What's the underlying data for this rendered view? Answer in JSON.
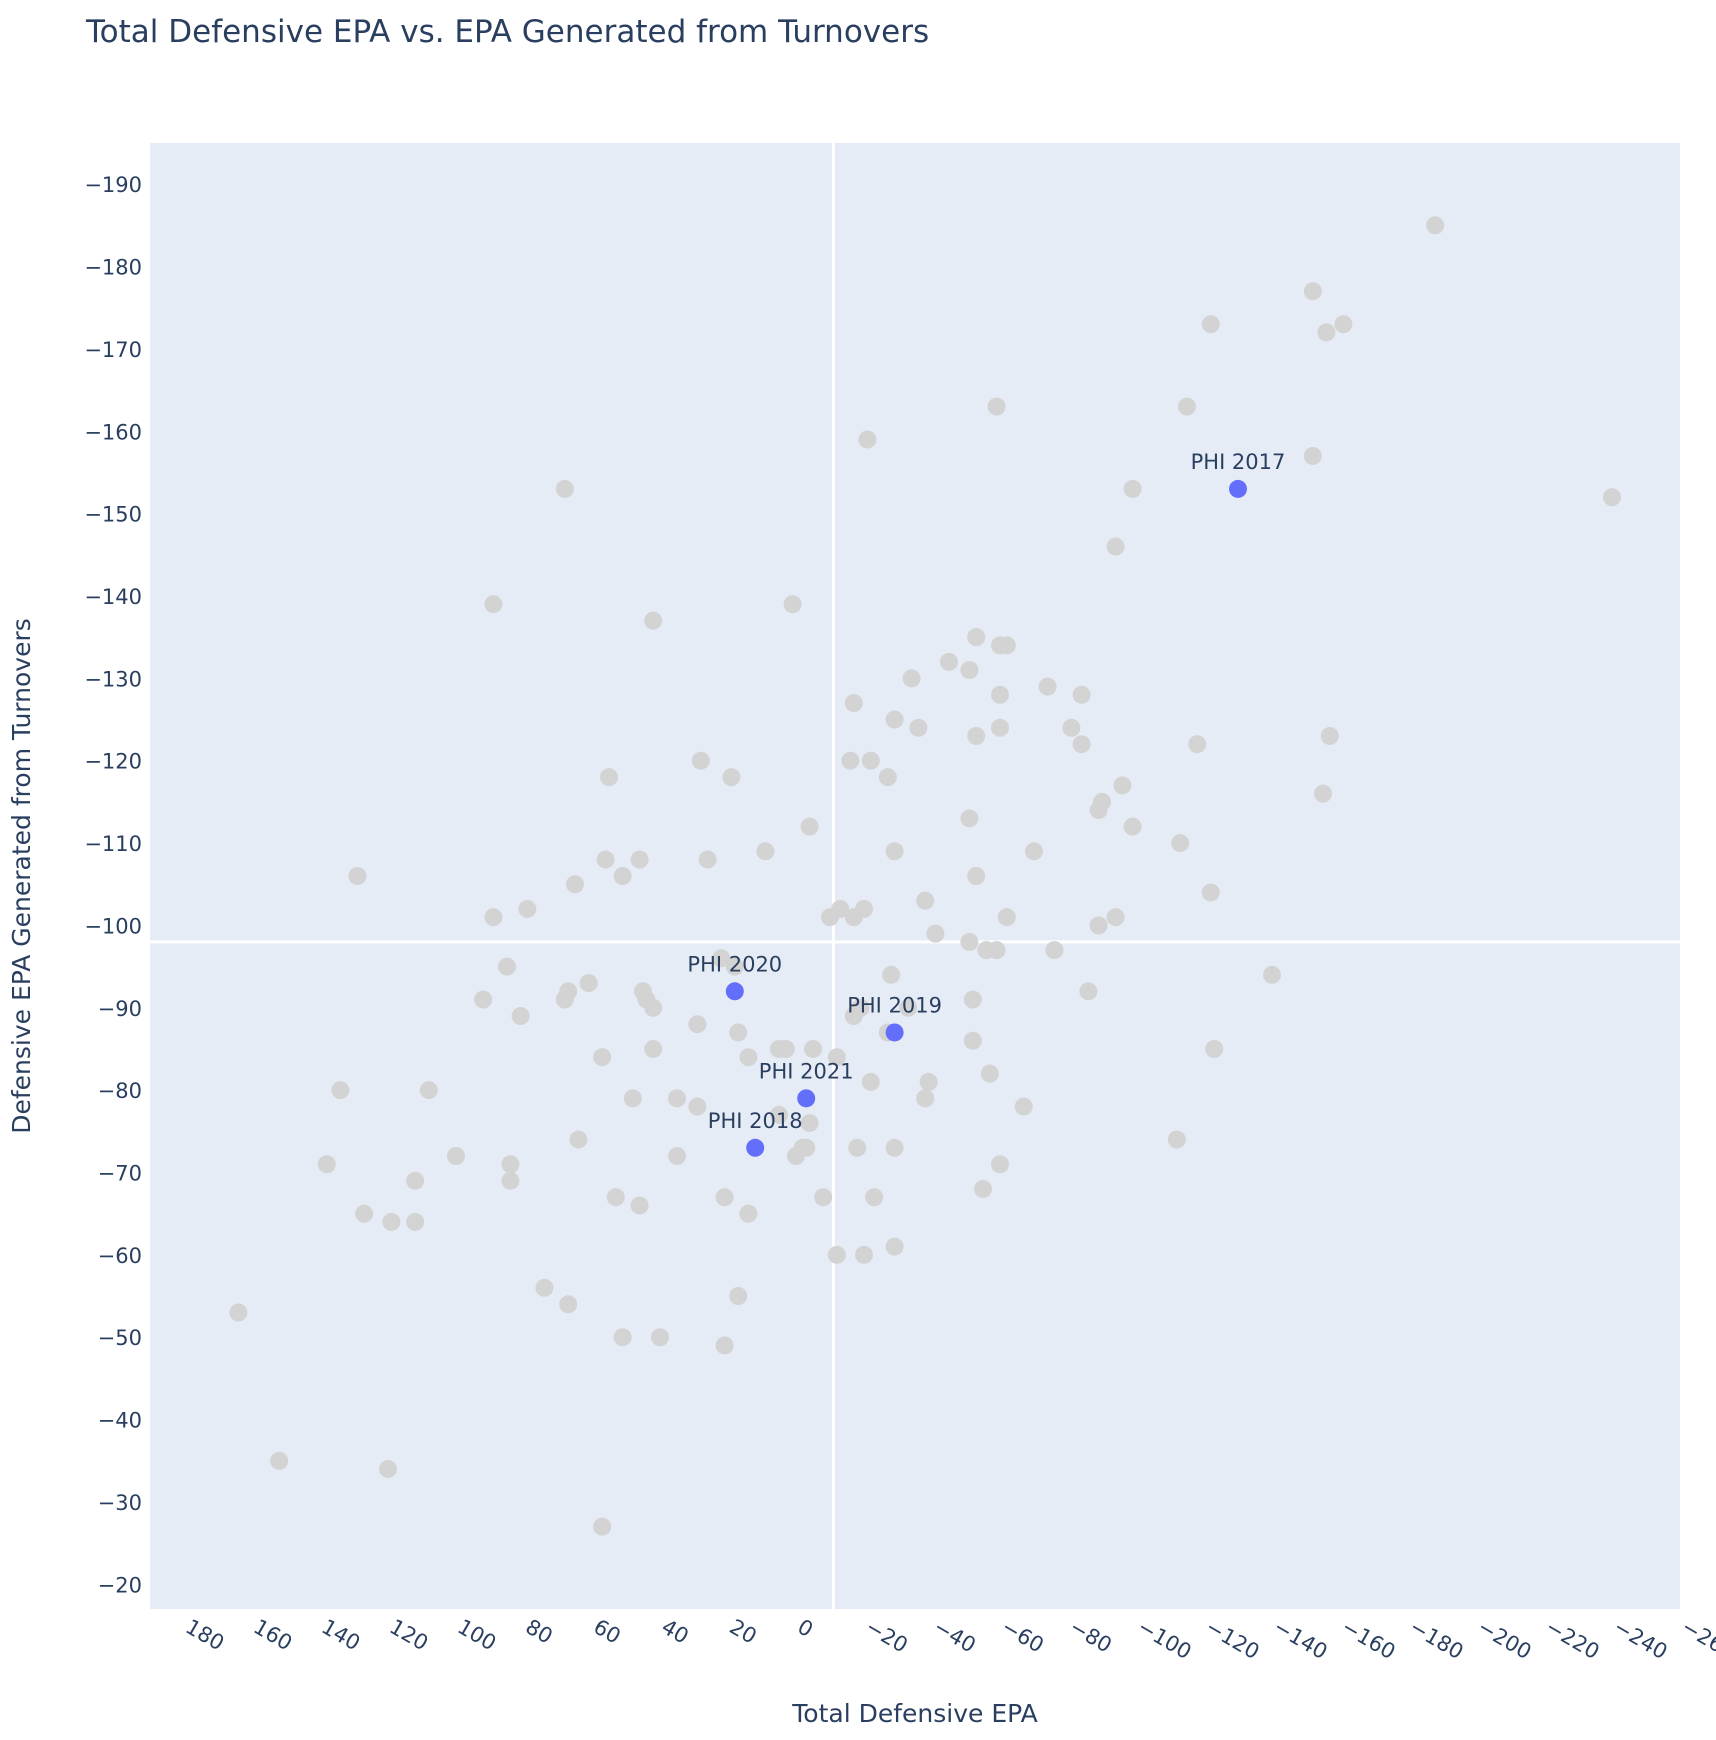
{
  "colors": {
    "plot_background": "#e5ecf6",
    "grid": "#ffffff",
    "other_teams": "#d3d3d3",
    "phi": "#636efa",
    "text": "#2a3f5f"
  },
  "chart_data": {
    "type": "scatter",
    "title": "Total Defensive EPA vs. EPA Generated from Turnovers",
    "xlabel": "Total Defensive EPA",
    "ylabel": "Defensive EPA Generated from Turnovers",
    "x_reversed": true,
    "y_reversed": true,
    "xlim": [
      190,
      -260
    ],
    "ylim": [
      -17,
      -195
    ],
    "xticks": [
      180,
      160,
      140,
      120,
      100,
      80,
      60,
      40,
      20,
      0,
      -20,
      -40,
      -60,
      -80,
      -100,
      -120,
      -140,
      -160,
      -180,
      -200,
      -220,
      -240,
      -260
    ],
    "xtick_labels": [
      "180",
      "160",
      "140",
      "120",
      "100",
      "80",
      "60",
      "40",
      "20",
      "0",
      "−20",
      "−40",
      "−60",
      "−80",
      "−100",
      "−120",
      "−140",
      "−160",
      "−180",
      "−200",
      "−220",
      "−240",
      "−260"
    ],
    "yticks": [
      -20,
      -30,
      -40,
      -50,
      -60,
      -70,
      -80,
      -90,
      -100,
      -110,
      -120,
      -130,
      -140,
      -150,
      -160,
      -170,
      -180,
      -190
    ],
    "ytick_labels": [
      "−20",
      "−30",
      "−40",
      "−50",
      "−60",
      "−70",
      "−80",
      "−90",
      "−100",
      "−110",
      "−120",
      "−130",
      "−140",
      "−150",
      "−160",
      "−170",
      "−180",
      "−190"
    ],
    "reference_lines": {
      "x": -11,
      "y": -98
    },
    "highlight": [
      {
        "label": "PHI 2017",
        "x": -130,
        "y": -153
      },
      {
        "label": "PHI 2018",
        "x": 12,
        "y": -73
      },
      {
        "label": "PHI 2019",
        "x": -29,
        "y": -87
      },
      {
        "label": "PHI 2020",
        "x": 18,
        "y": -92
      },
      {
        "label": "PHI 2021",
        "x": -3,
        "y": -79
      }
    ],
    "others": [
      [
        -188,
        -185
      ],
      [
        -161,
        -173
      ],
      [
        -152,
        -177
      ],
      [
        -156,
        -172
      ],
      [
        -122,
        -173
      ],
      [
        -115,
        -163
      ],
      [
        -59,
        -163
      ],
      [
        -152,
        -157
      ],
      [
        -21,
        -159
      ],
      [
        -240,
        -152
      ],
      [
        -99,
        -153
      ],
      [
        -94,
        -146
      ],
      [
        68,
        -153
      ],
      [
        89,
        -139
      ],
      [
        42,
        -137
      ],
      [
        1,
        -139
      ],
      [
        -53,
        -135
      ],
      [
        -62,
        -134
      ],
      [
        -60,
        -134
      ],
      [
        -34,
        -130
      ],
      [
        -45,
        -132
      ],
      [
        -51,
        -131
      ],
      [
        -74,
        -129
      ],
      [
        -84,
        -128
      ],
      [
        -17,
        -127
      ],
      [
        -60,
        -128
      ],
      [
        -29,
        -125
      ],
      [
        -36,
        -124
      ],
      [
        -53,
        -123
      ],
      [
        -60,
        -124
      ],
      [
        -81,
        -124
      ],
      [
        -84,
        -122
      ],
      [
        -118,
        -122
      ],
      [
        -157,
        -123
      ],
      [
        -16,
        -120
      ],
      [
        -22,
        -120
      ],
      [
        -27,
        -118
      ],
      [
        28,
        -120
      ],
      [
        19,
        -118
      ],
      [
        55,
        -118
      ],
      [
        -96,
        -117
      ],
      [
        -90,
        -115
      ],
      [
        -89,
        -114
      ],
      [
        -99,
        -112
      ],
      [
        -155,
        -116
      ],
      [
        -38,
        -103
      ],
      [
        -70,
        -109
      ],
      [
        -113,
        -110
      ],
      [
        -51,
        -113
      ],
      [
        -4,
        -112
      ],
      [
        9,
        -109
      ],
      [
        56,
        -108
      ],
      [
        46,
        -108
      ],
      [
        26,
        -108
      ],
      [
        -29,
        -109
      ],
      [
        -53,
        -106
      ],
      [
        51,
        -106
      ],
      [
        65,
        -105
      ],
      [
        129,
        -106
      ],
      [
        89,
        -101
      ],
      [
        79,
        -102
      ],
      [
        -10,
        -101
      ],
      [
        -13,
        -102
      ],
      [
        -17,
        -101
      ],
      [
        -20,
        -102
      ],
      [
        -41,
        -99
      ],
      [
        -51,
        -98
      ],
      [
        -62,
        -101
      ],
      [
        -89,
        -100
      ],
      [
        -94,
        -101
      ],
      [
        -122,
        -104
      ],
      [
        -59,
        -97
      ],
      [
        -76,
        -97
      ],
      [
        -56,
        -97
      ],
      [
        22,
        -96
      ],
      [
        18,
        -95
      ],
      [
        -28,
        -94
      ],
      [
        -86,
        -92
      ],
      [
        -140,
        -94
      ],
      [
        85,
        -95
      ],
      [
        92,
        -91
      ],
      [
        67,
        -92
      ],
      [
        61,
        -93
      ],
      [
        45,
        -92
      ],
      [
        44,
        -91
      ],
      [
        42,
        -90
      ],
      [
        68,
        -91
      ],
      [
        81,
        -89
      ],
      [
        29,
        -88
      ],
      [
        17,
        -87
      ],
      [
        -19,
        -90
      ],
      [
        -17,
        -89
      ],
      [
        -27,
        -87
      ],
      [
        -52,
        -91
      ],
      [
        -33,
        -90
      ],
      [
        -52,
        -86
      ],
      [
        14,
        -84
      ],
      [
        5,
        -85
      ],
      [
        3,
        -85
      ],
      [
        -5,
        -85
      ],
      [
        -12,
        -84
      ],
      [
        -22,
        -81
      ],
      [
        -39,
        -81
      ],
      [
        -57,
        -82
      ],
      [
        -123,
        -85
      ],
      [
        57,
        -84
      ],
      [
        42,
        -85
      ],
      [
        134,
        -80
      ],
      [
        108,
        -80
      ],
      [
        48,
        -79
      ],
      [
        35,
        -79
      ],
      [
        29,
        -78
      ],
      [
        5,
        -77
      ],
      [
        -4,
        -76
      ],
      [
        -67,
        -78
      ],
      [
        -38,
        -79
      ],
      [
        -112,
        -74
      ],
      [
        64,
        -74
      ],
      [
        35,
        -72
      ],
      [
        0,
        -72
      ],
      [
        -2,
        -73
      ],
      [
        -3,
        -73
      ],
      [
        -18,
        -73
      ],
      [
        -29,
        -73
      ],
      [
        -60,
        -71
      ],
      [
        138,
        -71
      ],
      [
        112,
        -69
      ],
      [
        100,
        -72
      ],
      [
        84,
        -71
      ],
      [
        84,
        -69
      ],
      [
        53,
        -67
      ],
      [
        46,
        -66
      ],
      [
        21,
        -67
      ],
      [
        -8,
        -67
      ],
      [
        -23,
        -67
      ],
      [
        -55,
        -68
      ],
      [
        127,
        -65
      ],
      [
        119,
        -64
      ],
      [
        112,
        -64
      ],
      [
        14,
        -65
      ],
      [
        -12,
        -60
      ],
      [
        -20,
        -60
      ],
      [
        -29,
        -61
      ],
      [
        74,
        -56
      ],
      [
        67,
        -54
      ],
      [
        17,
        -55
      ],
      [
        51,
        -50
      ],
      [
        40,
        -50
      ],
      [
        21,
        -49
      ],
      [
        164,
        -53
      ],
      [
        152,
        -35
      ],
      [
        120,
        -34
      ],
      [
        57,
        -27
      ]
    ]
  }
}
